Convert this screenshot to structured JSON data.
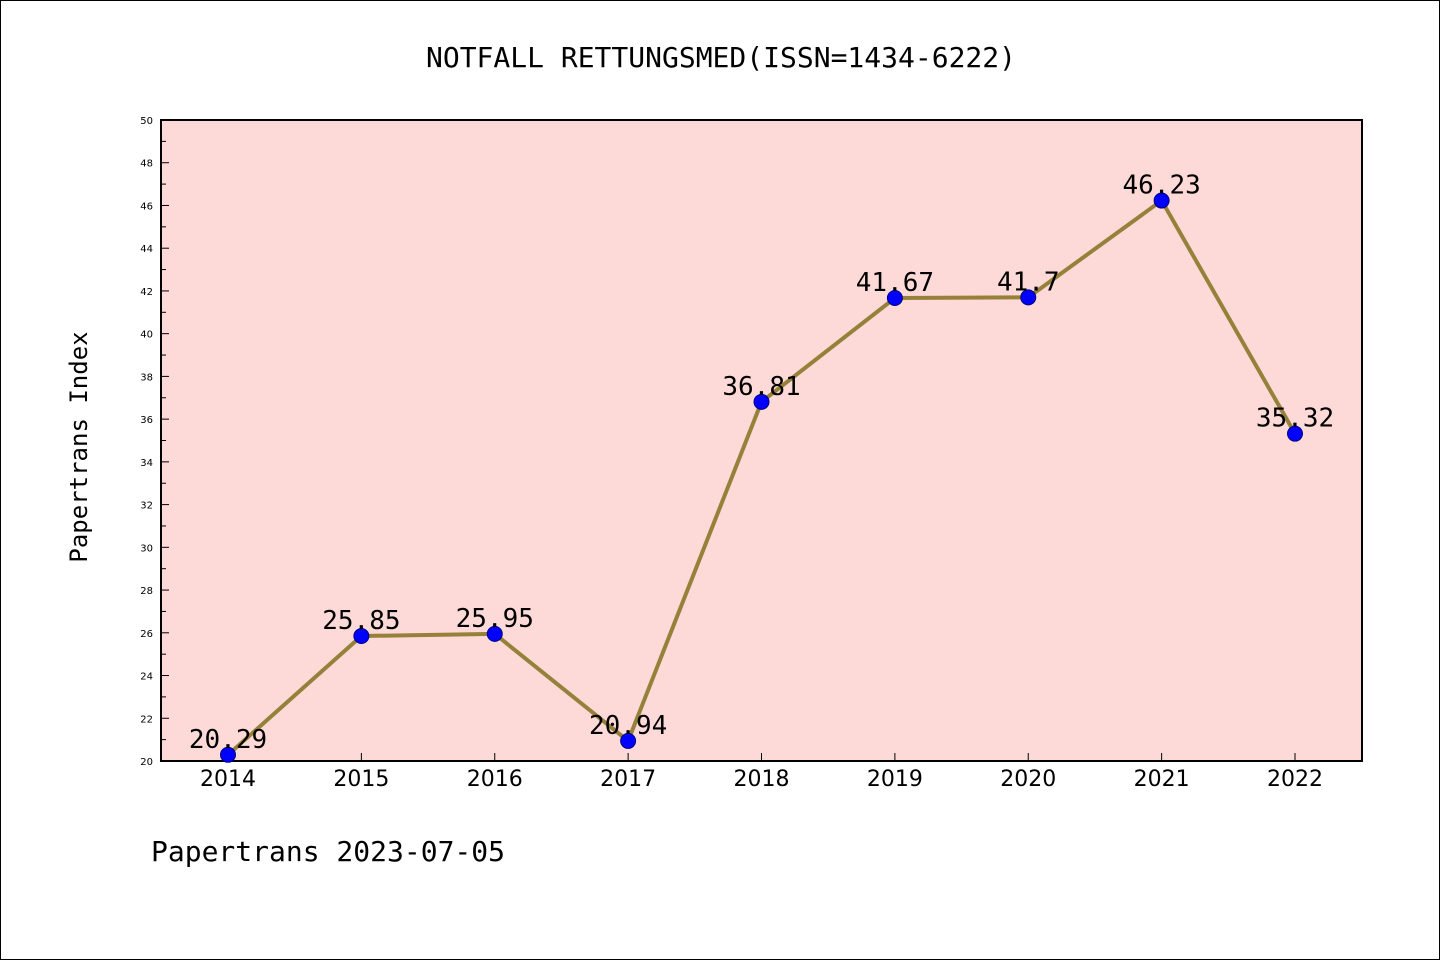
{
  "footer": {
    "text": "Papertrans 2023-07-05"
  },
  "chart_data": {
    "type": "line",
    "title": "NOTFALL RETTUNGSMED(ISSN=1434-6222)",
    "xlabel": "",
    "ylabel": "Papertrans Index",
    "categories": [
      "2014",
      "2015",
      "2016",
      "2017",
      "2018",
      "2019",
      "2020",
      "2021",
      "2022"
    ],
    "values": [
      20.29,
      25.85,
      25.95,
      20.94,
      36.81,
      41.67,
      41.7,
      46.23,
      35.32
    ],
    "data_labels": [
      "20.29",
      "25.85",
      "25.95",
      "20.94",
      "36.81",
      "41.67",
      "41.7",
      "46.23",
      "35.32"
    ],
    "ylim": [
      20,
      50
    ],
    "y_ticks": [
      20,
      22,
      24,
      26,
      28,
      30,
      32,
      34,
      36,
      38,
      40,
      42,
      44,
      46,
      48,
      50
    ],
    "grid": false,
    "legend": "none",
    "colors": {
      "plot_background": "#fddad8",
      "line": "#958139",
      "marker_fill": "#0000ff",
      "marker_stroke": "#000080"
    }
  }
}
